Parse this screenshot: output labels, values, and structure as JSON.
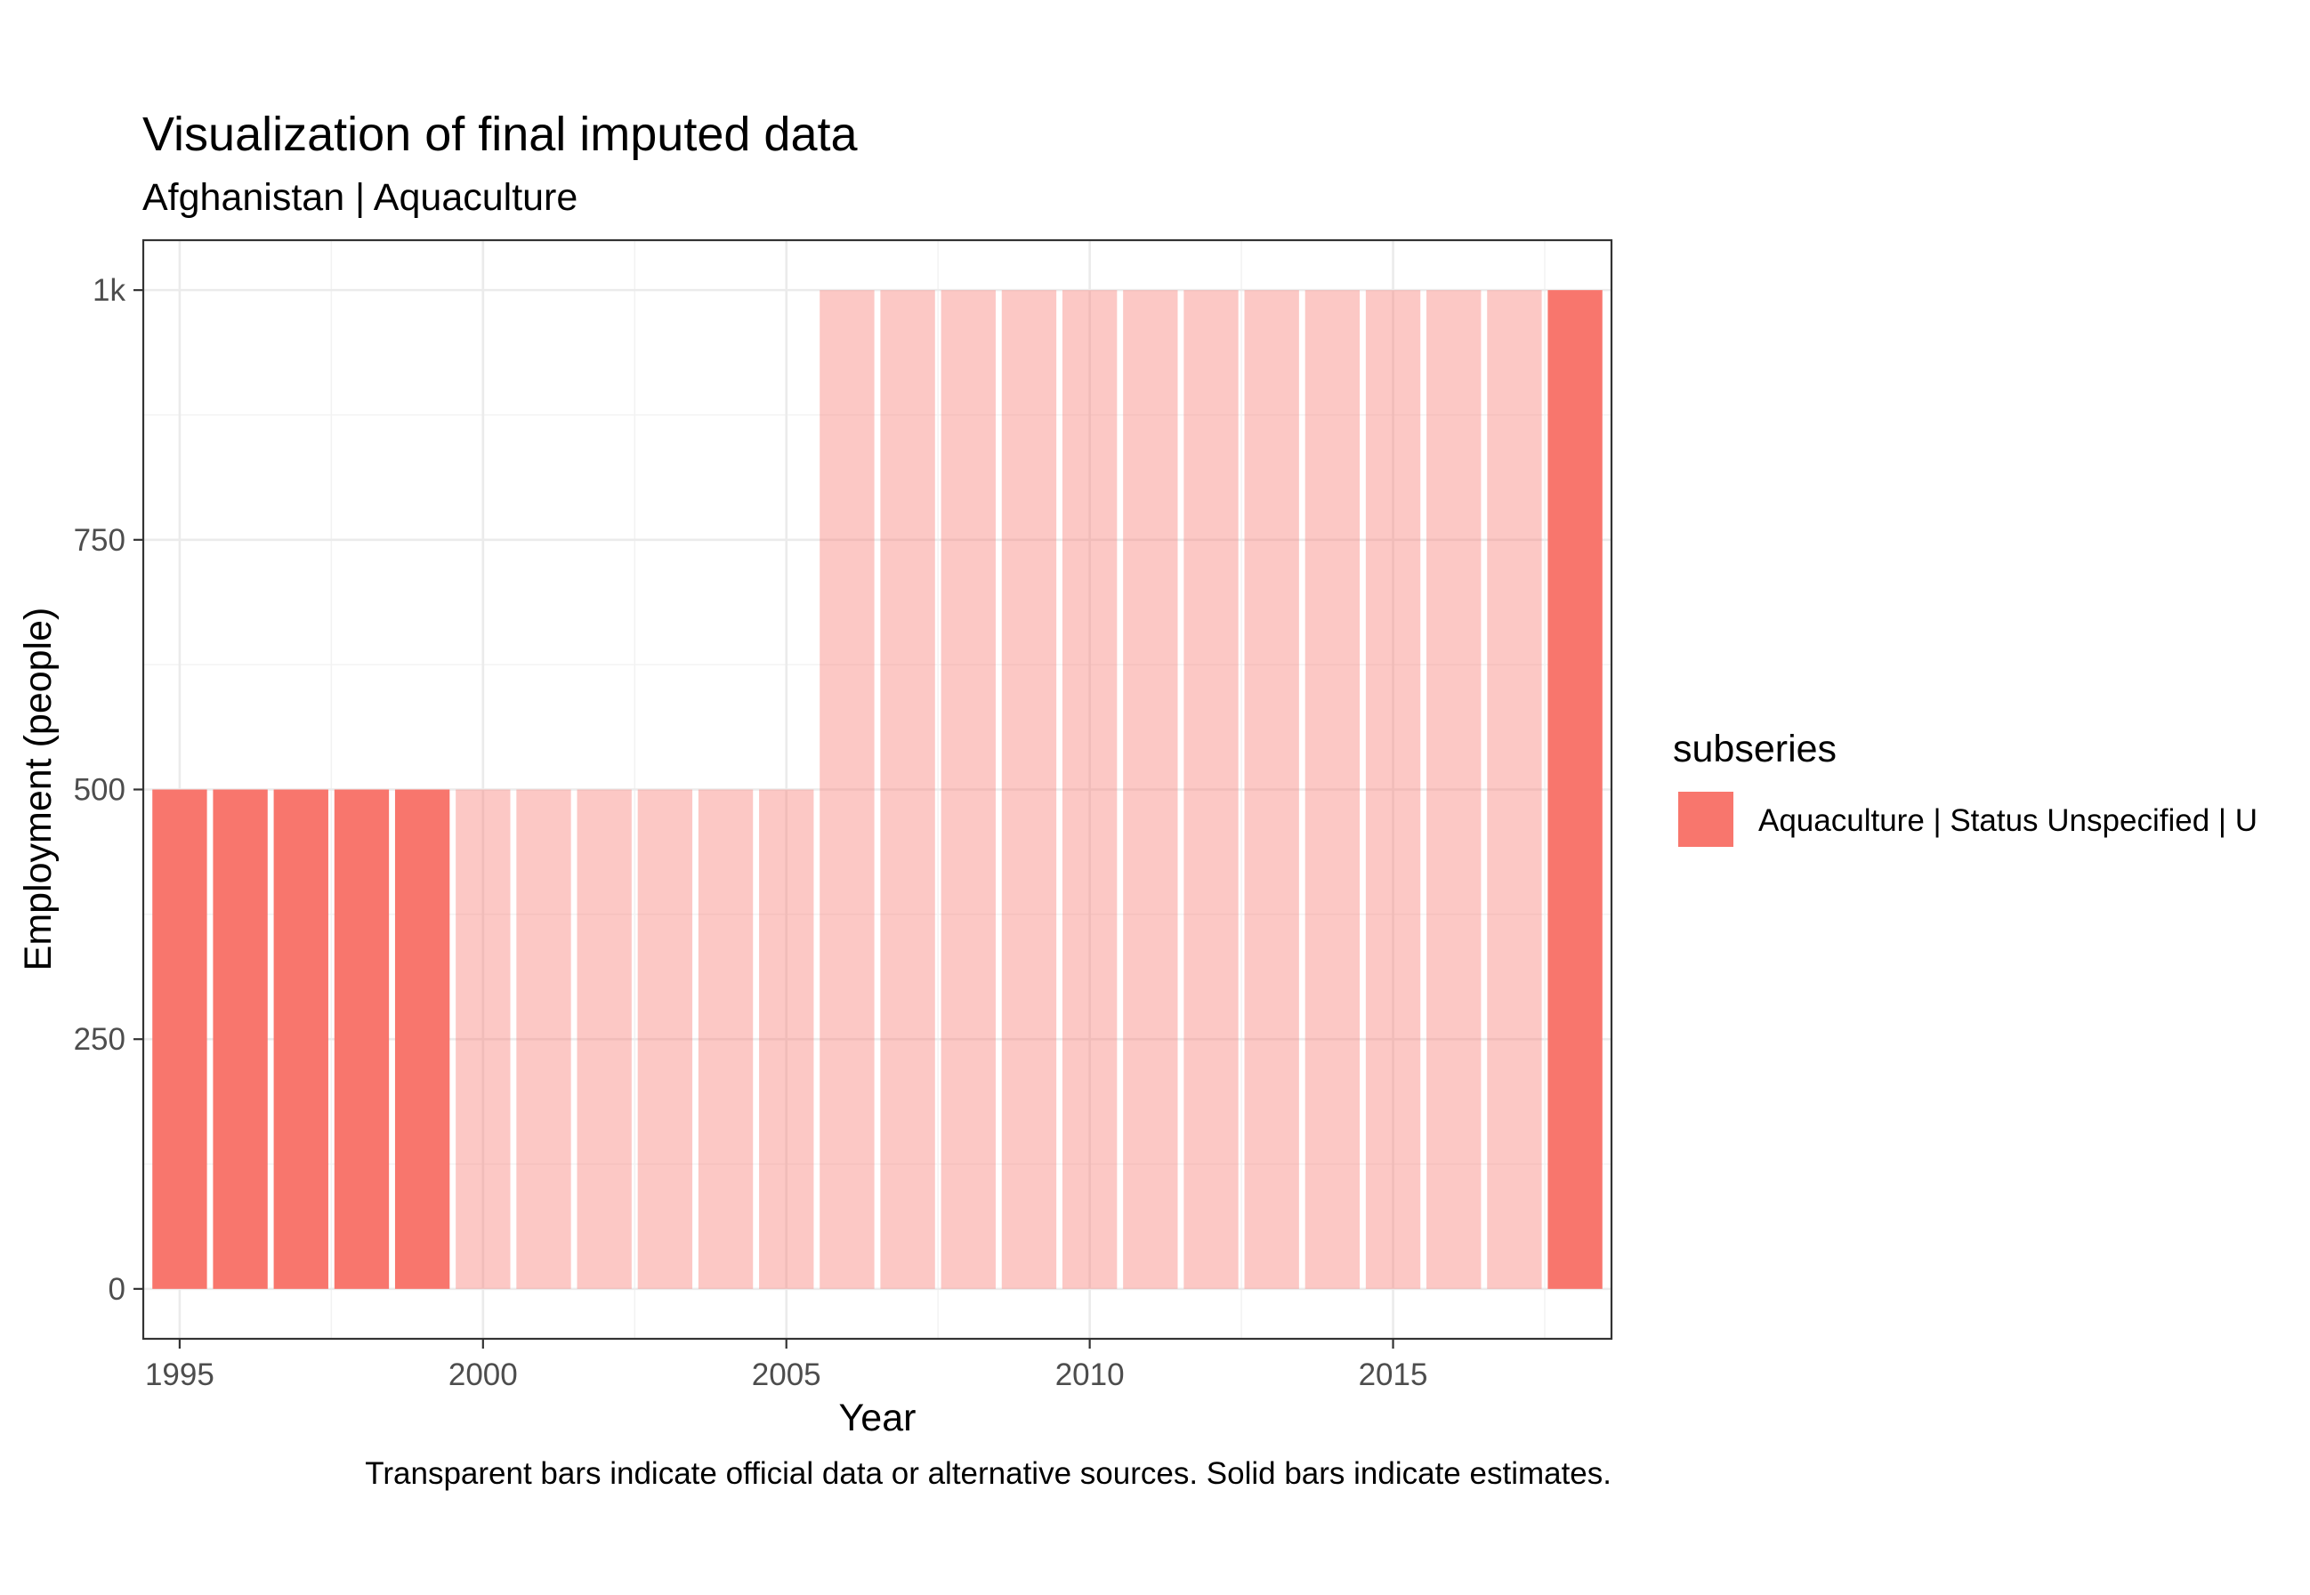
{
  "chart_data": {
    "type": "bar",
    "title": "Visualization of final imputed data",
    "subtitle": "Afghanistan | Aquaculture",
    "xlabel": "Year",
    "ylabel": "Employment (people)",
    "caption": "Transparent bars indicate official data or alternative sources. Solid bars indicate estimates.",
    "x": [
      1995,
      1996,
      1997,
      1998,
      1999,
      2000,
      2001,
      2002,
      2003,
      2004,
      2005,
      2006,
      2007,
      2008,
      2009,
      2010,
      2011,
      2012,
      2013,
      2014,
      2015,
      2016,
      2017,
      2018
    ],
    "values": [
      500,
      500,
      500,
      500,
      500,
      500,
      500,
      500,
      500,
      500,
      500,
      1000,
      1000,
      1000,
      1000,
      1000,
      1000,
      1000,
      1000,
      1000,
      1000,
      1000,
      1000,
      1000
    ],
    "estimated": [
      true,
      true,
      true,
      true,
      true,
      false,
      false,
      false,
      false,
      false,
      false,
      false,
      false,
      false,
      false,
      false,
      false,
      false,
      false,
      false,
      false,
      false,
      false,
      true
    ],
    "xlim": [
      1994.4,
      2018.6
    ],
    "ylim": [
      -50,
      1050
    ],
    "x_ticks": [
      1995,
      2000,
      2005,
      2010,
      2015
    ],
    "x_tick_labels": [
      "1995",
      "2000",
      "2005",
      "2010",
      "2015"
    ],
    "y_ticks": [
      0,
      250,
      500,
      750,
      1000
    ],
    "y_tick_labels": [
      "0",
      "250",
      "500",
      "750",
      "1k"
    ],
    "grid": true,
    "legend": {
      "title": "subseries",
      "position": "right",
      "entries": [
        {
          "label": "Aquaculture | Status Unspecified | U",
          "color": "#F8766D"
        }
      ]
    },
    "series": [
      {
        "name": "Aquaculture | Status Unspecified | U",
        "color": "#F8766D",
        "transparent_alpha": 0.4
      }
    ]
  }
}
